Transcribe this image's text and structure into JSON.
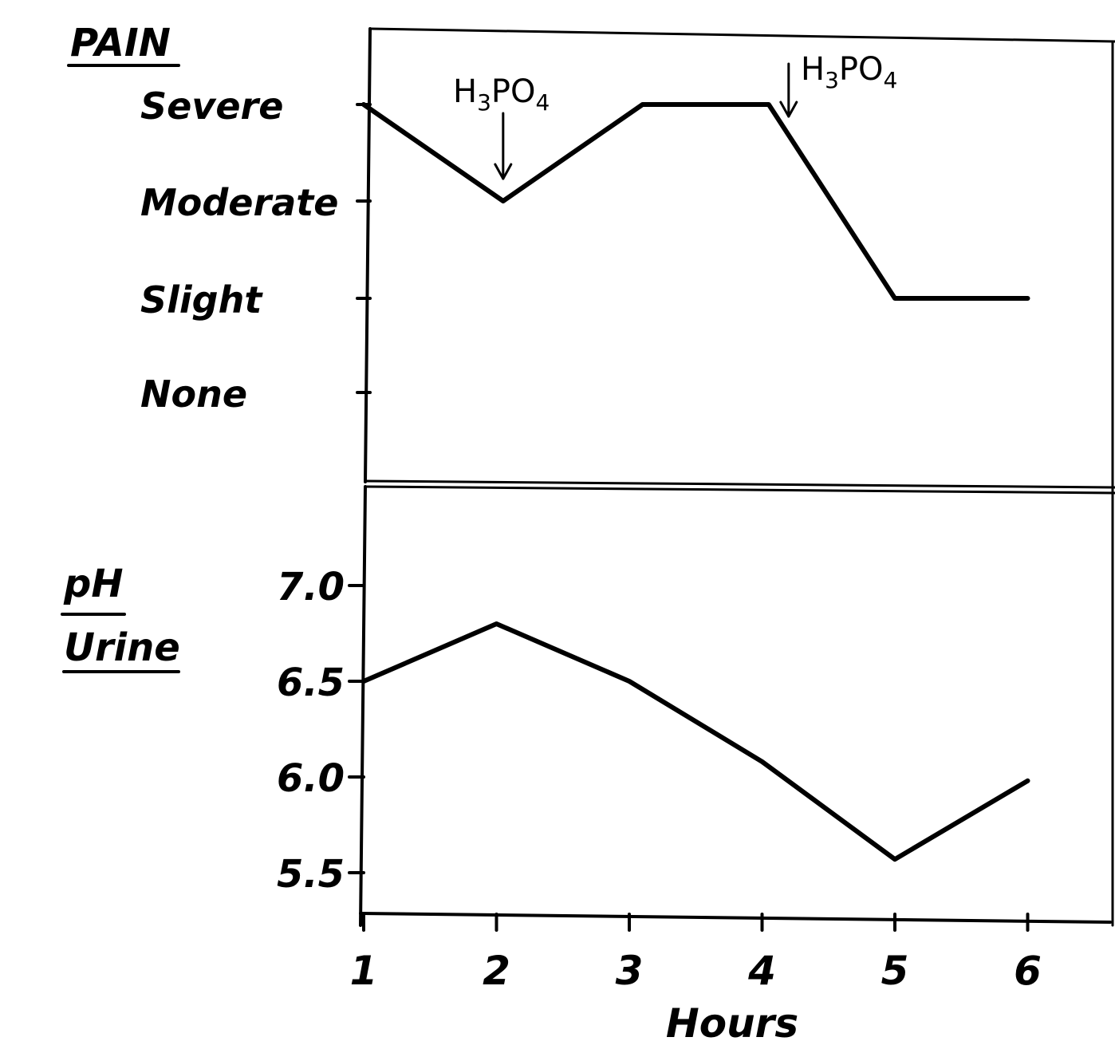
{
  "chart_data": [
    {
      "type": "line",
      "title": "PAIN",
      "categories": [
        "None",
        "Slight",
        "Moderate",
        "Severe"
      ],
      "x": [
        1,
        2,
        3,
        4,
        5,
        6
      ],
      "series": [
        {
          "values": [
            4,
            3,
            4,
            4,
            2,
            2
          ]
        }
      ],
      "vertices": [
        {
          "x": 1.0,
          "y": 4
        },
        {
          "x": 2.05,
          "y": 3
        },
        {
          "x": 3.1,
          "y": 4
        },
        {
          "x": 4.05,
          "y": 4
        },
        {
          "x": 5.0,
          "y": 2
        },
        {
          "x": 6.0,
          "y": 2
        }
      ],
      "annotations": [
        {
          "label": "H3PO4",
          "x": 2.05
        },
        {
          "label": "H3PO4",
          "x": 4.2
        }
      ],
      "grid": false
    },
    {
      "type": "line",
      "title": "pH Urine",
      "ylabel_lines": [
        "pH",
        "Urine"
      ],
      "x": [
        1,
        2,
        3,
        4,
        5,
        6
      ],
      "series": [
        {
          "values": [
            6.5,
            6.8,
            6.5,
            6.08,
            5.57,
            5.98
          ]
        }
      ],
      "yticks": [
        "7.0",
        "6.5",
        "6.0",
        "5.5"
      ],
      "ylim": [
        5.5,
        7.0
      ],
      "grid": false
    }
  ],
  "xaxis": {
    "label": "Hours",
    "ticks": [
      "1",
      "2",
      "3",
      "4",
      "5",
      "6"
    ]
  }
}
